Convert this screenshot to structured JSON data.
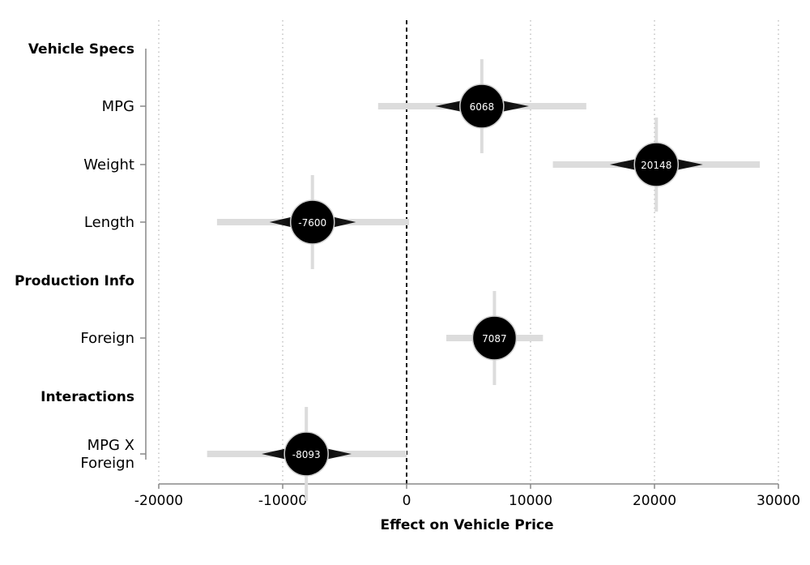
{
  "chart_data": {
    "type": "coefficient-plot",
    "xlabel": "Effect on Vehicle Price",
    "xlim": [
      -20000,
      30000
    ],
    "xticks": [
      -20000,
      -10000,
      0,
      10000,
      20000,
      30000
    ],
    "tick_labels": [
      "-20000",
      "-10000",
      "0",
      "10000",
      "20000",
      "30000"
    ],
    "reference_line": 0,
    "grid": "vertical dotted",
    "groups": [
      {
        "label": "Vehicle Specs",
        "rows": [
          {
            "label": [
              "MPG"
            ],
            "estimate": 6068,
            "display": "6068",
            "ci": [
              -2300,
              14500
            ],
            "sig_ci": [
              6000,
              6200
            ]
          },
          {
            "label": [
              "Weight"
            ],
            "estimate": 20148,
            "display": "20148",
            "ci": [
              11800,
              28500
            ],
            "sig_ci": [
              20000,
              20300
            ]
          },
          {
            "label": [
              "Length"
            ],
            "estimate": -7600,
            "display": "-7600",
            "ci": [
              -15300,
              200
            ],
            "sig_ci": [
              -7700,
              -7500
            ]
          }
        ]
      },
      {
        "label": "Production Info",
        "rows": [
          {
            "label": [
              "Foreign"
            ],
            "estimate": 7087,
            "display": "7087",
            "ci": [
              3200,
              11000
            ],
            "sig_ci": [
              7000,
              7200
            ]
          }
        ]
      },
      {
        "label": "Interactions",
        "rows": [
          {
            "label": [
              "MPG X",
              "Foreign"
            ],
            "estimate": -8093,
            "display": "-8093",
            "ci": [
              -16100,
              0
            ],
            "sig_ci": [
              -8200,
              -8000
            ]
          }
        ]
      }
    ]
  },
  "colors": {
    "point": "#000000",
    "ci_light": "#dcdcdc",
    "grid": "#b4b4b4",
    "axis": "#888888"
  }
}
